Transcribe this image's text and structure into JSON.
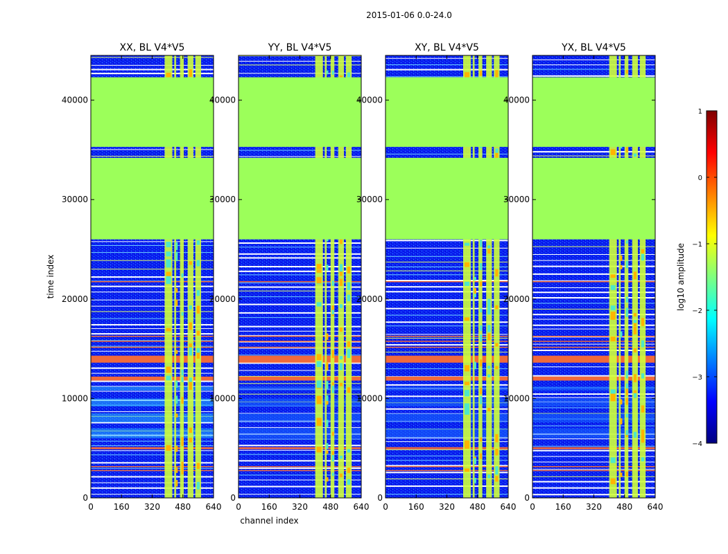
{
  "figure": {
    "suptitle": "2015-01-06 0.0-24.0"
  },
  "colormap": {
    "name": "jet",
    "stops": [
      "#00007f",
      "#0000ff",
      "#007fff",
      "#00ffff",
      "#7fff7f",
      "#ffff00",
      "#ff7f00",
      "#ff0000",
      "#7f0000"
    ],
    "background_blue": "#0a1ef0",
    "flagged_green": "#9cff5a",
    "band_red": "#f06a3c",
    "band_yellow": "#e6ff6a"
  },
  "chart_data": {
    "type": "heatmap",
    "xlabel": "channel index",
    "ylabel": "time index",
    "xlim": [
      0,
      640
    ],
    "ylim": [
      0,
      44500
    ],
    "xticks": [
      "0",
      "160",
      "320",
      "480",
      "640"
    ],
    "xtick_values": [
      0,
      160,
      320,
      480,
      640
    ],
    "yticks": [
      "0",
      "10000",
      "20000",
      "30000",
      "40000"
    ],
    "ytick_values": [
      0,
      10000,
      20000,
      30000,
      40000
    ],
    "panels": [
      {
        "title": "XX, BL V4*V5",
        "ylabel": "time index",
        "xlabel": ""
      },
      {
        "title": "YY, BL V4*V5",
        "ylabel": "",
        "xlabel": "channel index"
      },
      {
        "title": "XY, BL V4*V5",
        "ylabel": "",
        "xlabel": ""
      },
      {
        "title": "YX, BL V4*V5",
        "ylabel": "",
        "xlabel": ""
      }
    ],
    "flagged_time_ranges": [
      [
        26000,
        34200
      ],
      [
        35300,
        42300
      ]
    ],
    "rfi_channel_ranges": [
      [
        400,
        440
      ],
      [
        450,
        460
      ],
      [
        480,
        500
      ],
      [
        520,
        550
      ],
      [
        560,
        590
      ]
    ],
    "red_band_time_ranges": [
      [
        11800,
        12200
      ],
      [
        13600,
        14300
      ],
      [
        4900,
        5100
      ]
    ],
    "colorbar": {
      "label": "log10 amplitude",
      "range": [
        -4,
        1
      ],
      "ticks": [
        "1",
        "0",
        "−1",
        "−2",
        "−3",
        "−4"
      ],
      "tick_values": [
        1,
        0,
        -1,
        -2,
        -3,
        -4
      ]
    }
  }
}
